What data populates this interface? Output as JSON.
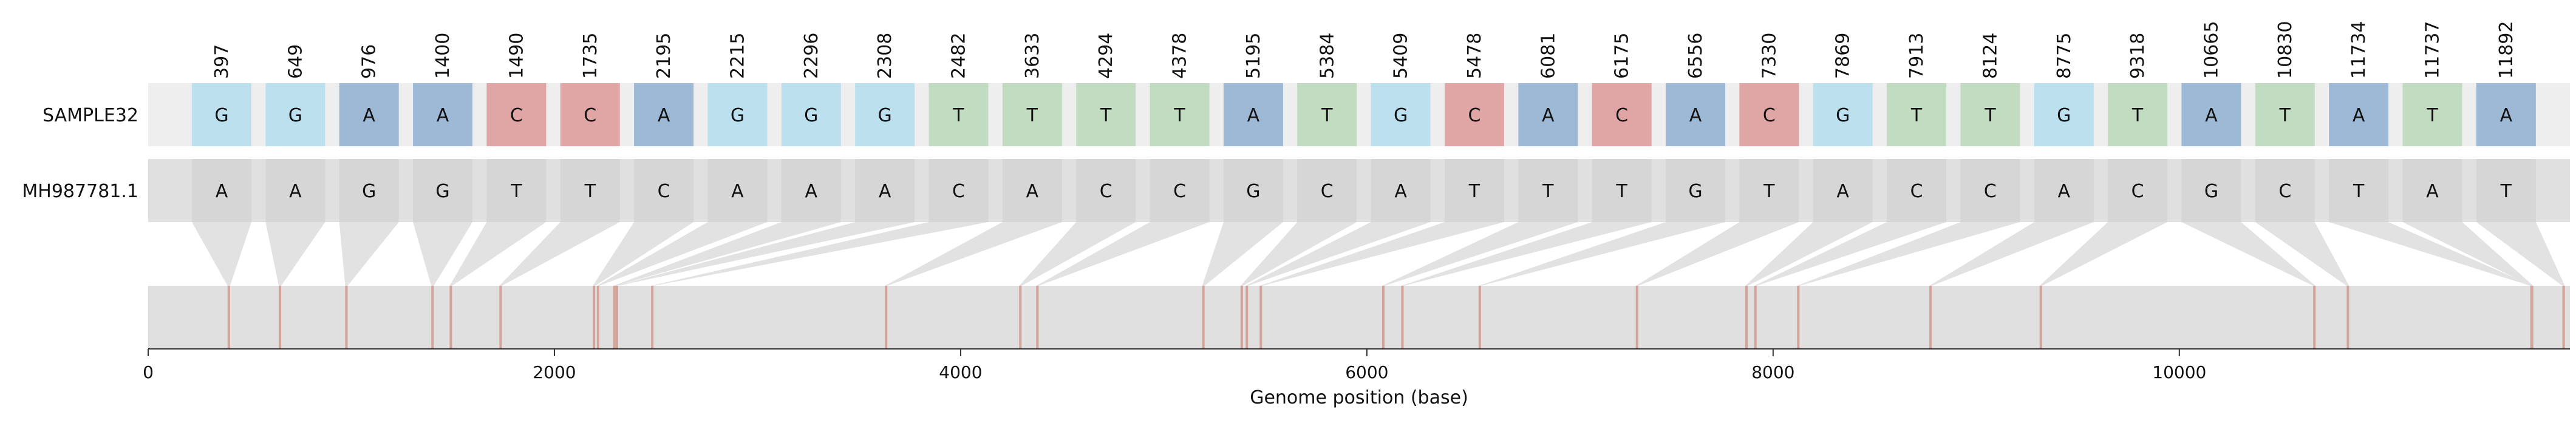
{
  "chart_data": {
    "type": "table",
    "xlabel": "Genome position (base)",
    "xlim": [
      0,
      11923
    ],
    "x_ticks": [
      0,
      2000,
      4000,
      6000,
      8000,
      10000
    ],
    "x_tick_labels": [
      "0",
      "2000",
      "4000",
      "6000",
      "8000",
      "10000"
    ],
    "rows": [
      {
        "name": "SAMPLE32",
        "bases": [
          "G",
          "G",
          "A",
          "A",
          "C",
          "C",
          "A",
          "G",
          "G",
          "G",
          "T",
          "T",
          "T",
          "T",
          "A",
          "T",
          "G",
          "C",
          "A",
          "C",
          "A",
          "C",
          "G",
          "T",
          "T",
          "G",
          "T",
          "A",
          "T",
          "A",
          "T",
          "A"
        ]
      },
      {
        "name": "MH987781.1",
        "bases": [
          "A",
          "A",
          "G",
          "G",
          "T",
          "T",
          "C",
          "A",
          "A",
          "A",
          "C",
          "A",
          "C",
          "C",
          "G",
          "C",
          "A",
          "T",
          "T",
          "T",
          "G",
          "T",
          "A",
          "C",
          "C",
          "A",
          "C",
          "G",
          "C",
          "T",
          "A",
          "T"
        ]
      }
    ],
    "positions": [
      397,
      649,
      976,
      1400,
      1490,
      1735,
      2195,
      2215,
      2296,
      2308,
      2482,
      3633,
      4294,
      4378,
      5195,
      5384,
      5409,
      5478,
      6081,
      6175,
      6556,
      7330,
      7869,
      7913,
      8124,
      8775,
      9318,
      10665,
      10830,
      11734,
      11737,
      11892
    ],
    "base_colors": {
      "A": "#9db9d6",
      "C": "#e0a6a6",
      "G": "#bde0ee",
      "T": "#c2dcc2"
    },
    "reference_cell_color": "#d6d6d6",
    "track_color": "#e0e0e0",
    "variant_line_color": "#d2a49a",
    "connector_color": "#e2e2e2"
  }
}
